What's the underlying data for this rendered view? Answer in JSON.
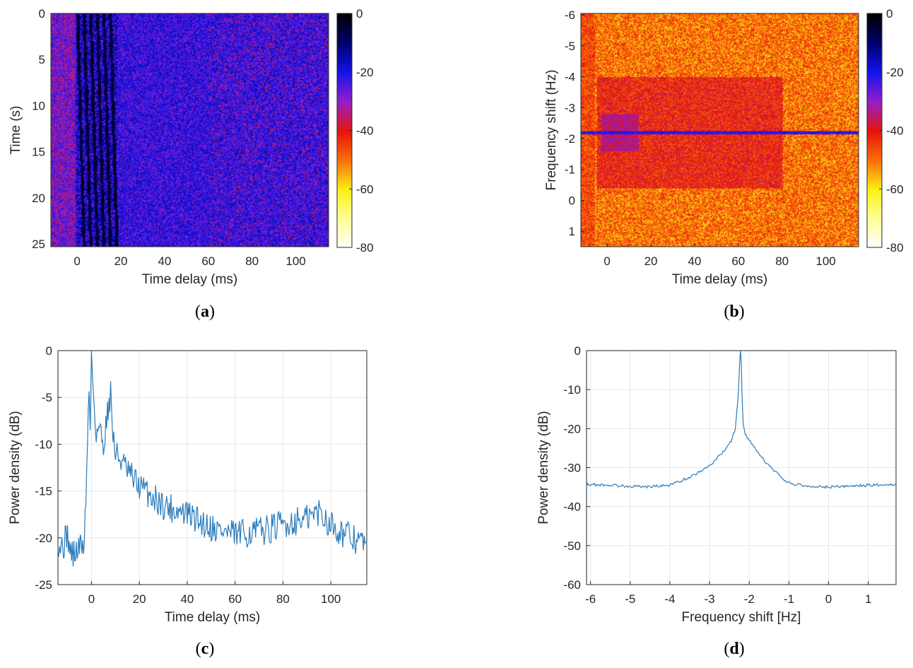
{
  "chart_data": [
    {
      "panel": "a",
      "caption_letter": "a",
      "type": "heatmap",
      "xlabel": "Time delay (ms)",
      "ylabel": "Time (s)",
      "x_ticks": [
        0,
        20,
        40,
        60,
        80,
        100
      ],
      "y_ticks": [
        0,
        5,
        10,
        15,
        20,
        25
      ],
      "xlim": [
        -12,
        115
      ],
      "ylim": [
        0,
        25.3
      ],
      "y_reversed": true,
      "colormap": "flag-like: black at 0 dB, blue near -20, red near -40, yellow near -60, white at -80",
      "colorbar_ticks": [
        0,
        -20,
        -40,
        -60,
        -80
      ],
      "colorbar_range": [
        -80,
        0
      ],
      "features": {
        "dominant_level_db": -22,
        "strong_stripes_delay_ms": [
          0,
          3,
          6,
          9,
          12,
          15
        ],
        "stripe_level_db": -5,
        "noise_floor_db": -35
      }
    },
    {
      "panel": "b",
      "caption_letter": "b",
      "type": "heatmap",
      "xlabel": "Time delay (ms)",
      "ylabel": "Frequency shift (Hz)",
      "x_ticks": [
        0,
        20,
        40,
        60,
        80,
        100
      ],
      "y_ticks": [
        -6,
        -5,
        -4,
        -3,
        -2,
        -1,
        0,
        1
      ],
      "xlim": [
        -12,
        115
      ],
      "ylim": [
        -6.05,
        1.5
      ],
      "y_reversed": true,
      "colormap": "flag-like: black at 0 dB, blue near -20, red near -40, yellow near -60, white at -80",
      "colorbar_ticks": [
        0,
        -20,
        -40,
        -60,
        -80
      ],
      "colorbar_range": [
        -80,
        0
      ],
      "features": {
        "doppler_line_hz": -2.2,
        "doppler_line_level_db": -22,
        "background_level_db": -50,
        "spread_region_level_db": -42,
        "spread_delay_ms": [
          0,
          60
        ]
      }
    },
    {
      "panel": "c",
      "caption_letter": "c",
      "type": "line",
      "xlabel": "Time delay (ms)",
      "ylabel": "Power density (dB)",
      "x_ticks": [
        0,
        20,
        40,
        60,
        80,
        100
      ],
      "y_ticks": [
        0,
        -5,
        -10,
        -15,
        -20,
        -25
      ],
      "xlim": [
        -14,
        115
      ],
      "ylim": [
        -25,
        0
      ],
      "grid": true,
      "line_color": "#2b7bba",
      "series": [
        {
          "x": [
            -14,
            -12,
            -10,
            -9,
            -7,
            -5,
            -3,
            -2,
            -1,
            -0.5,
            0,
            0.5,
            1,
            2,
            3,
            5,
            7,
            8,
            9,
            10,
            12,
            15,
            20,
            25,
            30,
            35,
            40,
            45,
            50,
            55,
            60,
            65,
            70,
            75,
            80,
            85,
            90,
            95,
            100,
            105,
            110,
            115
          ],
          "y": [
            -20.5,
            -21,
            -19.5,
            -21.5,
            -21.8,
            -21,
            -20.5,
            -13,
            -3.8,
            -9,
            0,
            -3,
            -5,
            -9,
            -8,
            -10,
            -6,
            -4.5,
            -9,
            -11,
            -11.5,
            -13,
            -14.5,
            -15.5,
            -16.5,
            -17,
            -17.5,
            -18.2,
            -18.8,
            -19.3,
            -19.7,
            -19.5,
            -19.3,
            -19,
            -18.6,
            -18.2,
            -18,
            -17.2,
            -18.5,
            -19.5,
            -20.2,
            -20.5
          ]
        }
      ]
    },
    {
      "panel": "d",
      "caption_letter": "d",
      "type": "line",
      "xlabel": "Frequency shift [Hz]",
      "ylabel": "Power density (dB)",
      "x_ticks": [
        -6,
        -5,
        -4,
        -3,
        -2,
        -1,
        0,
        1
      ],
      "y_ticks": [
        0,
        -10,
        -20,
        -30,
        -40,
        -50,
        -60
      ],
      "xlim": [
        -6.1,
        1.7
      ],
      "ylim": [
        -60,
        0
      ],
      "grid": true,
      "line_color": "#2b7bba",
      "series": [
        {
          "x": [
            -6.1,
            -5.5,
            -5,
            -4.5,
            -4,
            -3.5,
            -3,
            -2.8,
            -2.6,
            -2.45,
            -2.35,
            -2.28,
            -2.24,
            -2.22,
            -2.2,
            -2.18,
            -2.15,
            -2.1,
            -2.0,
            -1.8,
            -1.6,
            -1.4,
            -1.2,
            -1,
            -0.5,
            0,
            0.5,
            1,
            1.7
          ],
          "y": [
            -34.3,
            -34.5,
            -34.8,
            -34.9,
            -34.5,
            -32.5,
            -29.5,
            -27.5,
            -25.5,
            -23,
            -20,
            -12,
            -3,
            0,
            -3,
            -12,
            -19,
            -21.5,
            -23,
            -26,
            -28.5,
            -30.5,
            -32.5,
            -34,
            -34.8,
            -35,
            -34.8,
            -34.5,
            -34.3
          ]
        }
      ]
    }
  ]
}
